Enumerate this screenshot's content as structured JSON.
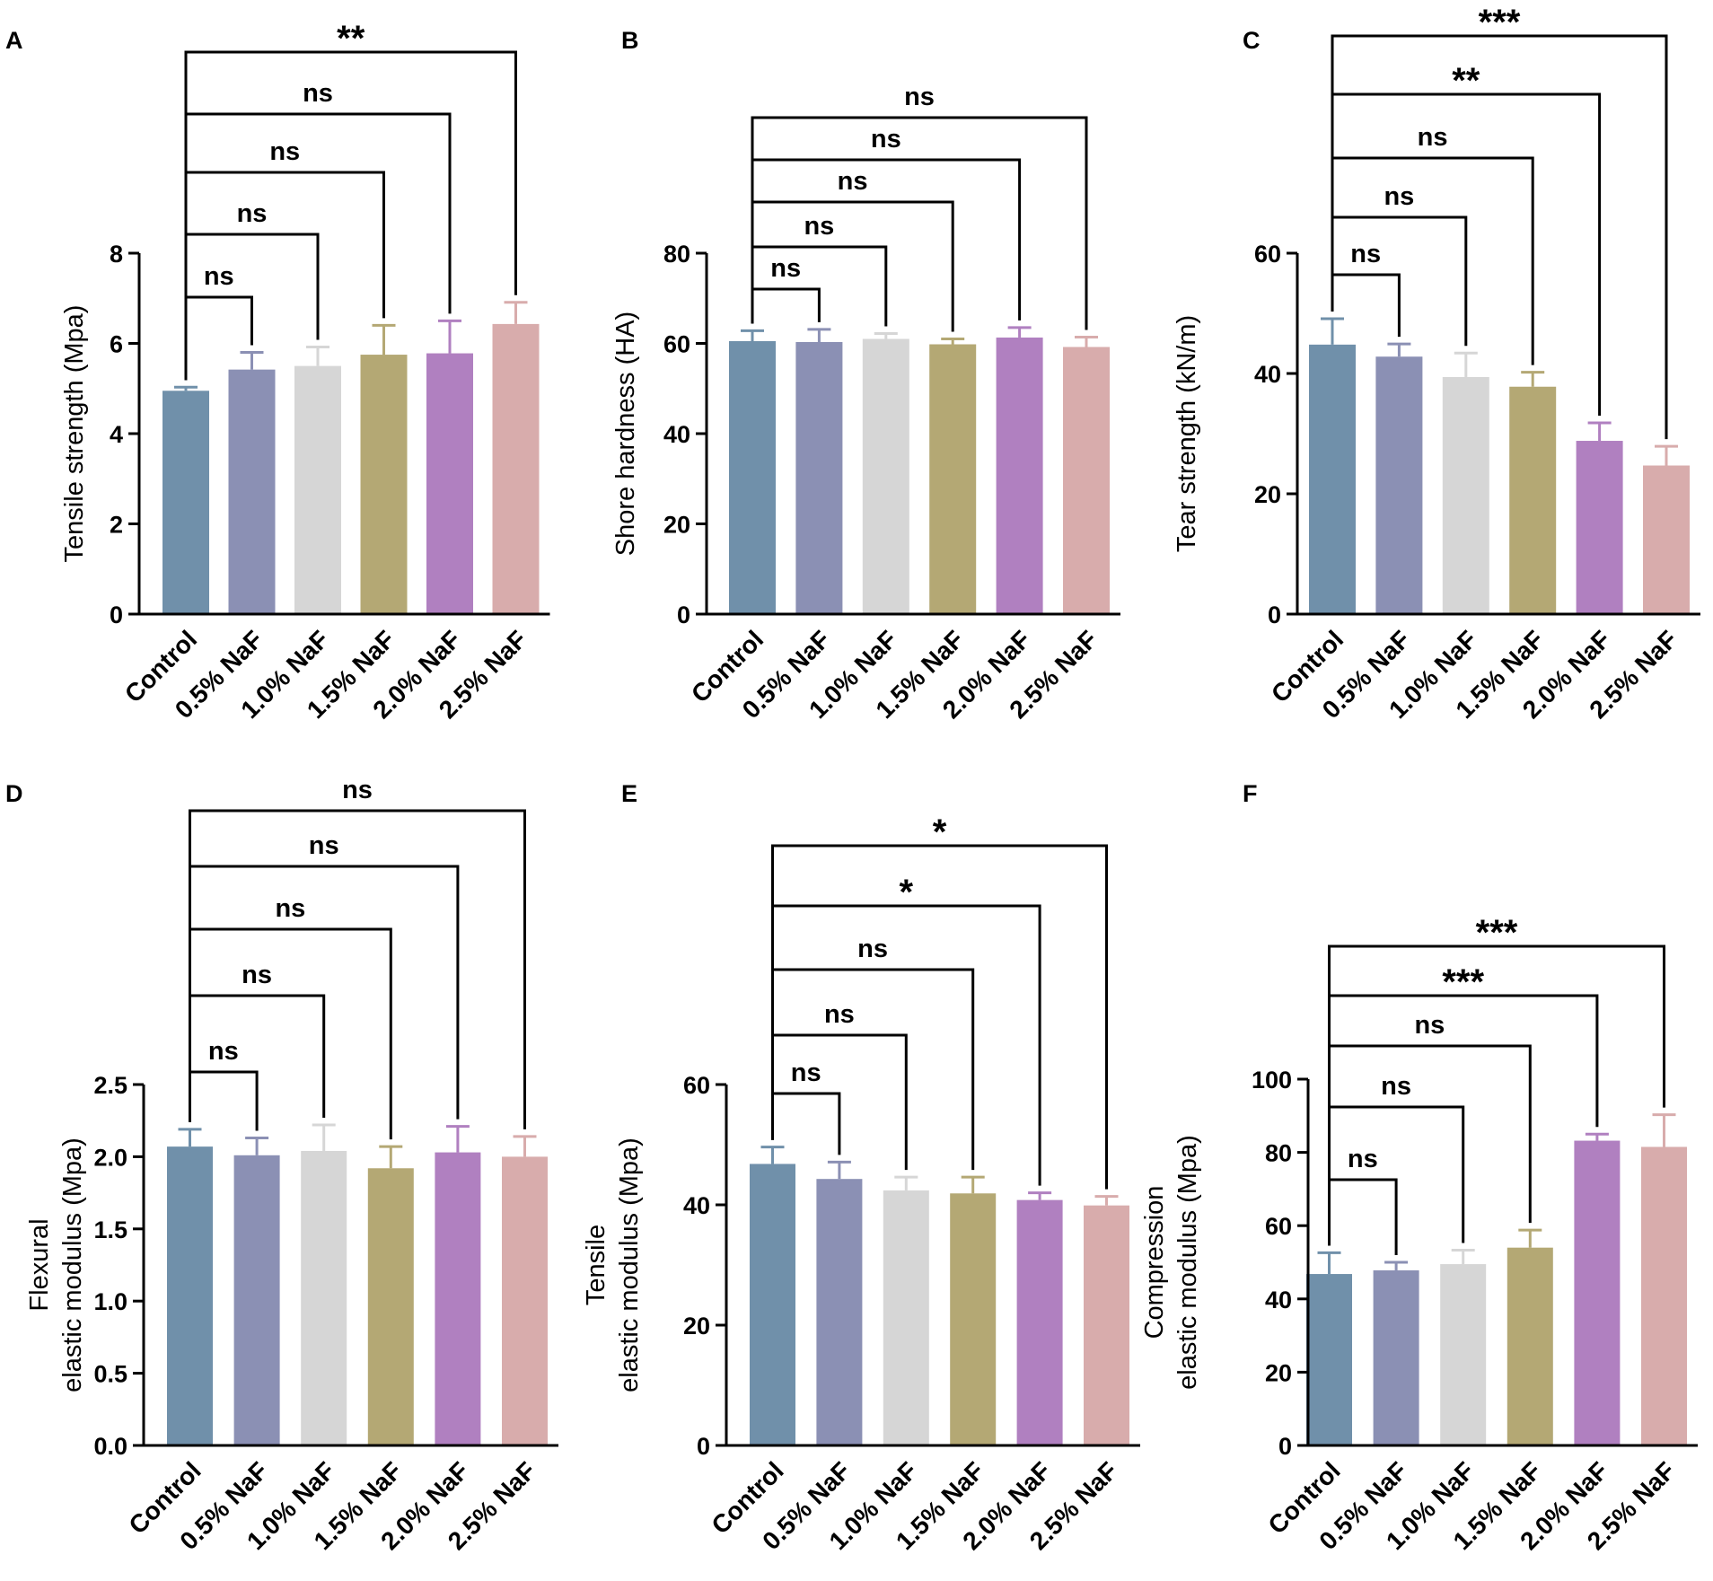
{
  "chart_data": [
    {
      "panel": "A",
      "type": "bar",
      "ylabel": "Tensile strength (Mpa)",
      "ylim": [
        0,
        8
      ],
      "yticks": [
        "0",
        "2",
        "4",
        "6",
        "8"
      ],
      "categories": [
        "Control",
        "0.5% NaF",
        "1.0% NaF",
        "1.5% NaF",
        "2.0% NaF",
        "2.5% NaF"
      ],
      "values": [
        4.95,
        5.42,
        5.5,
        5.75,
        5.78,
        6.43
      ],
      "errors": [
        0.08,
        0.38,
        0.42,
        0.65,
        0.72,
        0.48
      ],
      "comparisons": [
        {
          "from": 0,
          "to": 1,
          "label": "ns"
        },
        {
          "from": 0,
          "to": 2,
          "label": "ns"
        },
        {
          "from": 0,
          "to": 3,
          "label": "ns"
        },
        {
          "from": 0,
          "to": 4,
          "label": "ns"
        },
        {
          "from": 0,
          "to": 5,
          "label": "**"
        }
      ]
    },
    {
      "panel": "B",
      "type": "bar",
      "ylabel": "Shore hardness (HA)",
      "ylim": [
        0,
        80
      ],
      "yticks": [
        "0",
        "20",
        "40",
        "60",
        "80"
      ],
      "categories": [
        "Control",
        "0.5% NaF",
        "1.0% NaF",
        "1.5% NaF",
        "2.0% NaF",
        "2.5% NaF"
      ],
      "values": [
        60.5,
        60.3,
        61.0,
        59.8,
        61.3,
        59.2
      ],
      "errors": [
        2.3,
        2.8,
        1.2,
        1.2,
        2.2,
        2.2
      ],
      "comparisons": [
        {
          "from": 0,
          "to": 1,
          "label": "ns"
        },
        {
          "from": 0,
          "to": 2,
          "label": "ns"
        },
        {
          "from": 0,
          "to": 3,
          "label": "ns"
        },
        {
          "from": 0,
          "to": 4,
          "label": "ns"
        },
        {
          "from": 0,
          "to": 5,
          "label": "ns"
        }
      ]
    },
    {
      "panel": "C",
      "type": "bar",
      "ylabel": "Tear strength (kN/m)",
      "ylim": [
        0,
        60
      ],
      "yticks": [
        "0",
        "20",
        "40",
        "60"
      ],
      "categories": [
        "Control",
        "0.5% NaF",
        "1.0% NaF",
        "1.5% NaF",
        "2.0% NaF",
        "2.5% NaF"
      ],
      "values": [
        44.8,
        42.8,
        39.4,
        37.8,
        28.8,
        24.7
      ],
      "errors": [
        4.3,
        2.1,
        4.0,
        2.4,
        3.0,
        3.2
      ],
      "comparisons": [
        {
          "from": 0,
          "to": 1,
          "label": "ns"
        },
        {
          "from": 0,
          "to": 2,
          "label": "ns"
        },
        {
          "from": 0,
          "to": 3,
          "label": "ns"
        },
        {
          "from": 0,
          "to": 4,
          "label": "**"
        },
        {
          "from": 0,
          "to": 5,
          "label": "***"
        }
      ]
    },
    {
      "panel": "D",
      "type": "bar",
      "ylabel": [
        "Flexural",
        "elastic modulus (Mpa)"
      ],
      "ylim": [
        0,
        2.5
      ],
      "yticks": [
        "0.0",
        "0.5",
        "1.0",
        "1.5",
        "2.0",
        "2.5"
      ],
      "categories": [
        "Control",
        "0.5% NaF",
        "1.0% NaF",
        "1.5% NaF",
        "2.0% NaF",
        "2.5% NaF"
      ],
      "values": [
        2.07,
        2.01,
        2.04,
        1.92,
        2.03,
        2.0
      ],
      "errors": [
        0.12,
        0.12,
        0.18,
        0.15,
        0.18,
        0.14
      ],
      "comparisons": [
        {
          "from": 0,
          "to": 1,
          "label": "ns"
        },
        {
          "from": 0,
          "to": 2,
          "label": "ns"
        },
        {
          "from": 0,
          "to": 3,
          "label": "ns"
        },
        {
          "from": 0,
          "to": 4,
          "label": "ns"
        },
        {
          "from": 0,
          "to": 5,
          "label": "ns"
        }
      ]
    },
    {
      "panel": "E",
      "type": "bar",
      "ylabel": [
        "Tensile",
        "elastic modulus (Mpa)"
      ],
      "ylim": [
        0,
        60
      ],
      "yticks": [
        "0",
        "20",
        "40",
        "60"
      ],
      "categories": [
        "Control",
        "0.5% NaF",
        "1.0% NaF",
        "1.5% NaF",
        "2.0% NaF",
        "2.5% NaF"
      ],
      "values": [
        46.8,
        44.3,
        42.4,
        41.9,
        40.8,
        39.9
      ],
      "errors": [
        2.8,
        2.8,
        2.2,
        2.7,
        1.2,
        1.5
      ],
      "comparisons": [
        {
          "from": 0,
          "to": 1,
          "label": "ns"
        },
        {
          "from": 0,
          "to": 2,
          "label": "ns"
        },
        {
          "from": 0,
          "to": 3,
          "label": "ns"
        },
        {
          "from": 0,
          "to": 4,
          "label": "*"
        },
        {
          "from": 0,
          "to": 5,
          "label": "*"
        }
      ]
    },
    {
      "panel": "F",
      "type": "bar",
      "ylabel": [
        "Compression",
        "elastic modulus (Mpa)"
      ],
      "ylim": [
        0,
        100
      ],
      "yticks": [
        "0",
        "20",
        "40",
        "60",
        "80",
        "100"
      ],
      "categories": [
        "Control",
        "0.5% NaF",
        "1.0% NaF",
        "1.5% NaF",
        "2.0% NaF",
        "2.5% NaF"
      ],
      "values": [
        46.8,
        47.8,
        49.5,
        54.0,
        83.2,
        81.5
      ],
      "errors": [
        5.8,
        2.2,
        3.8,
        4.8,
        1.8,
        8.8
      ],
      "comparisons": [
        {
          "from": 0,
          "to": 1,
          "label": "ns"
        },
        {
          "from": 0,
          "to": 2,
          "label": "ns"
        },
        {
          "from": 0,
          "to": 3,
          "label": "ns"
        },
        {
          "from": 0,
          "to": 4,
          "label": "***"
        },
        {
          "from": 0,
          "to": 5,
          "label": "***"
        }
      ]
    }
  ],
  "colors": {
    "bars": [
      "#7090aa",
      "#8b90b4",
      "#d6d6d6",
      "#b4a874",
      "#b080c0",
      "#d8acac"
    ],
    "errors": [
      "#7090aa",
      "#8b90b4",
      "#d6d6d6",
      "#b4a874",
      "#b080c0",
      "#d8acac"
    ],
    "axis": "#000000"
  }
}
